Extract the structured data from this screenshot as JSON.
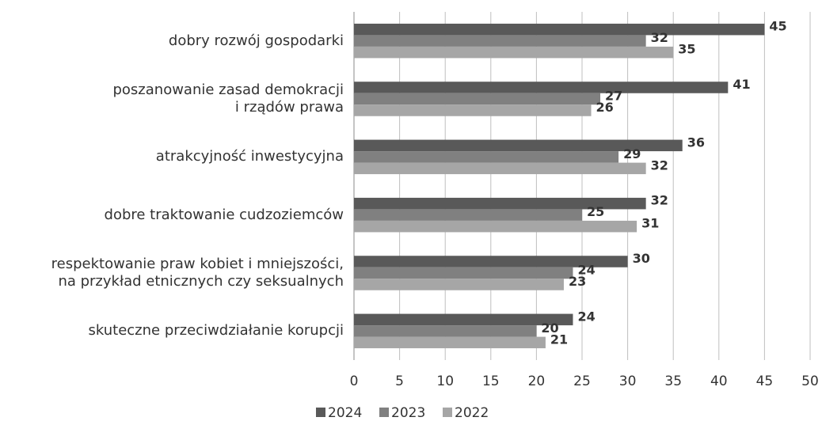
{
  "chart_data": {
    "type": "barh",
    "categories": [
      "dobry rozwój gospodarki",
      "poszanowanie zasad demokracji\ni rządów prawa",
      "atrakcyjność inwestycyjna",
      "dobre traktowanie cudzoziemców",
      "respektowanie praw kobiet i mniejszości,\nna przykład etnicznych czy seksualnych",
      "skuteczne przeciwdziałanie korupcji"
    ],
    "series": [
      {
        "name": "2024",
        "color": "#595959",
        "values": [
          45,
          41,
          36,
          32,
          30,
          24
        ]
      },
      {
        "name": "2023",
        "color": "#808080",
        "values": [
          32,
          27,
          29,
          25,
          24,
          20
        ]
      },
      {
        "name": "2022",
        "color": "#a6a6a6",
        "values": [
          35,
          26,
          32,
          31,
          23,
          21
        ]
      }
    ],
    "xlim": [
      0,
      50
    ],
    "xticks": [
      0,
      5,
      10,
      15,
      20,
      25,
      30,
      35,
      40,
      45,
      50
    ],
    "grid": true,
    "legend": "bottom"
  }
}
